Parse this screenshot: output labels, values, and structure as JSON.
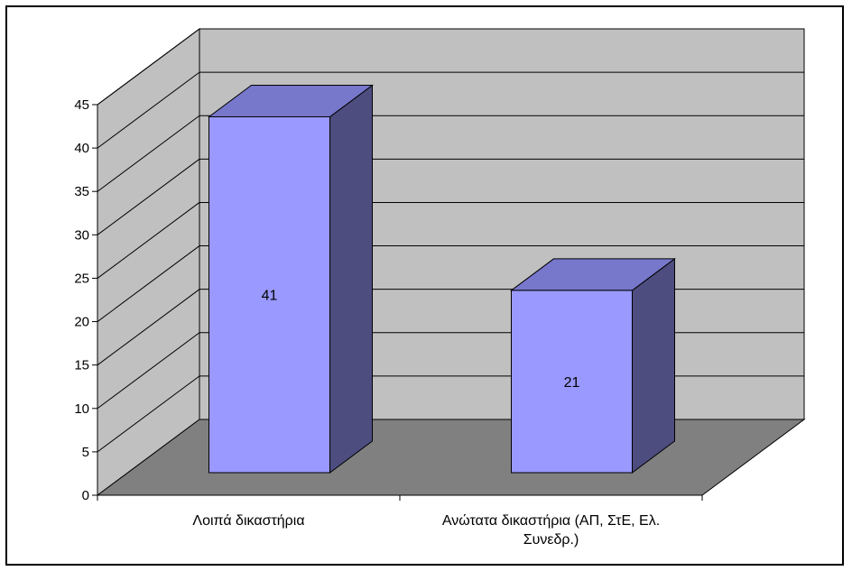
{
  "chart_data": {
    "type": "bar",
    "style": "3d-column",
    "categories": [
      "Λοιπά δικαστήρια",
      "Ανώτατα δικαστήρια (ΑΠ, ΣτΕ, Ελ. Συνεδρ.)"
    ],
    "category_label_lines": [
      [
        "Λοιπά δικαστήρια"
      ],
      [
        "Ανώτατα δικαστήρια (ΑΠ, ΣτΕ, Ελ.",
        "Συνεδρ.)"
      ]
    ],
    "values": [
      41,
      21
    ],
    "data_labels": [
      "41",
      "21"
    ],
    "title": "",
    "xlabel": "",
    "ylabel": "",
    "ylim": [
      0,
      45
    ],
    "yticks": [
      0,
      5,
      10,
      15,
      20,
      25,
      30,
      35,
      40,
      45
    ],
    "grid": true,
    "legend": "none",
    "colors": {
      "bar_front": "#9999FF",
      "bar_top": "#7777CC",
      "bar_side": "#4D4D80",
      "back_wall": "#C0C0C0",
      "floor": "#808080",
      "gridline": "#000000"
    }
  }
}
